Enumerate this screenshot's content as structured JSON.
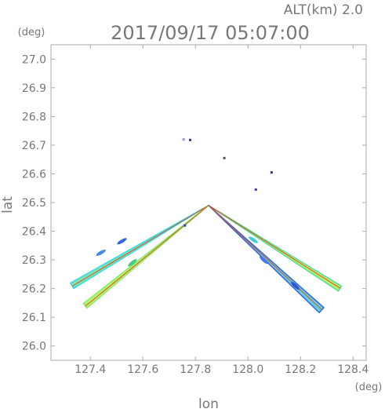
{
  "header": {
    "alt_label": "ALT(km) 2.0",
    "datetime": "2017/09/17 05:07:00"
  },
  "chart_data": {
    "type": "scatter",
    "xlabel": "lon",
    "ylabel": "lat",
    "x_unit": "(deg)",
    "y_unit": "(deg)",
    "xlim": [
      127.25,
      128.45
    ],
    "ylim": [
      25.95,
      27.05
    ],
    "x_ticks": [
      127.4,
      127.6,
      127.8,
      128.0,
      128.2,
      128.4
    ],
    "x_tick_labels": [
      "127.4",
      "127.6",
      "127.8",
      "128.0",
      "128.2",
      "128.4"
    ],
    "y_ticks": [
      26.0,
      26.1,
      26.2,
      26.3,
      26.4,
      26.5,
      26.6,
      26.7,
      26.8,
      26.9,
      27.0
    ],
    "y_tick_labels": [
      "26.0",
      "26.1",
      "26.2",
      "26.3",
      "26.4",
      "26.5",
      "26.6",
      "26.7",
      "26.8",
      "26.9",
      "27.0"
    ],
    "origin": [
      127.85,
      26.49
    ],
    "beams": [
      {
        "end": [
          127.33,
          26.21
        ],
        "width": 0.012,
        "fill": "#7fe0b0",
        "edge": "#33ddee",
        "center_line": "#dd5522",
        "patches": [
          {
            "at": [
              127.52,
              26.365
            ],
            "color": "#3366dd"
          },
          {
            "at": [
              127.44,
              26.325
            ],
            "color": "#4488ee"
          }
        ]
      },
      {
        "end": [
          127.38,
          26.14
        ],
        "width": 0.011,
        "fill": "#b8f070",
        "edge": "#88ee66",
        "center_line": "#dd5522",
        "patches": [
          {
            "at": [
              127.56,
              26.29
            ],
            "color": "#44cc88"
          }
        ]
      },
      {
        "end": [
          128.35,
          26.2
        ],
        "width": 0.011,
        "fill": "#b8f070",
        "edge": "#55dd99",
        "center_line": "#dd5522",
        "patches": [
          {
            "at": [
              128.02,
              26.37
            ],
            "color": "#44ccdd"
          }
        ]
      },
      {
        "end": [
          128.28,
          26.125
        ],
        "width": 0.013,
        "fill": "#66cce0",
        "edge": "#3366dd",
        "center_line": "#dd5522",
        "patches": [
          {
            "at": [
              128.18,
              26.21
            ],
            "color": "#3355cc"
          },
          {
            "at": [
              128.06,
              26.3
            ],
            "color": "#4477ee"
          }
        ]
      }
    ],
    "scattered_echoes": [
      {
        "at": [
          127.78,
          26.718
        ],
        "color": "#2233aa"
      },
      {
        "at": [
          127.755,
          26.72
        ],
        "color": "#8899dd"
      },
      {
        "at": [
          128.03,
          26.545
        ],
        "color": "#3344cc"
      },
      {
        "at": [
          128.09,
          26.605
        ],
        "color": "#2233aa"
      },
      {
        "at": [
          127.91,
          26.655
        ],
        "color": "#555555"
      },
      {
        "at": [
          127.76,
          26.42
        ],
        "color": "#2244cc"
      }
    ]
  }
}
